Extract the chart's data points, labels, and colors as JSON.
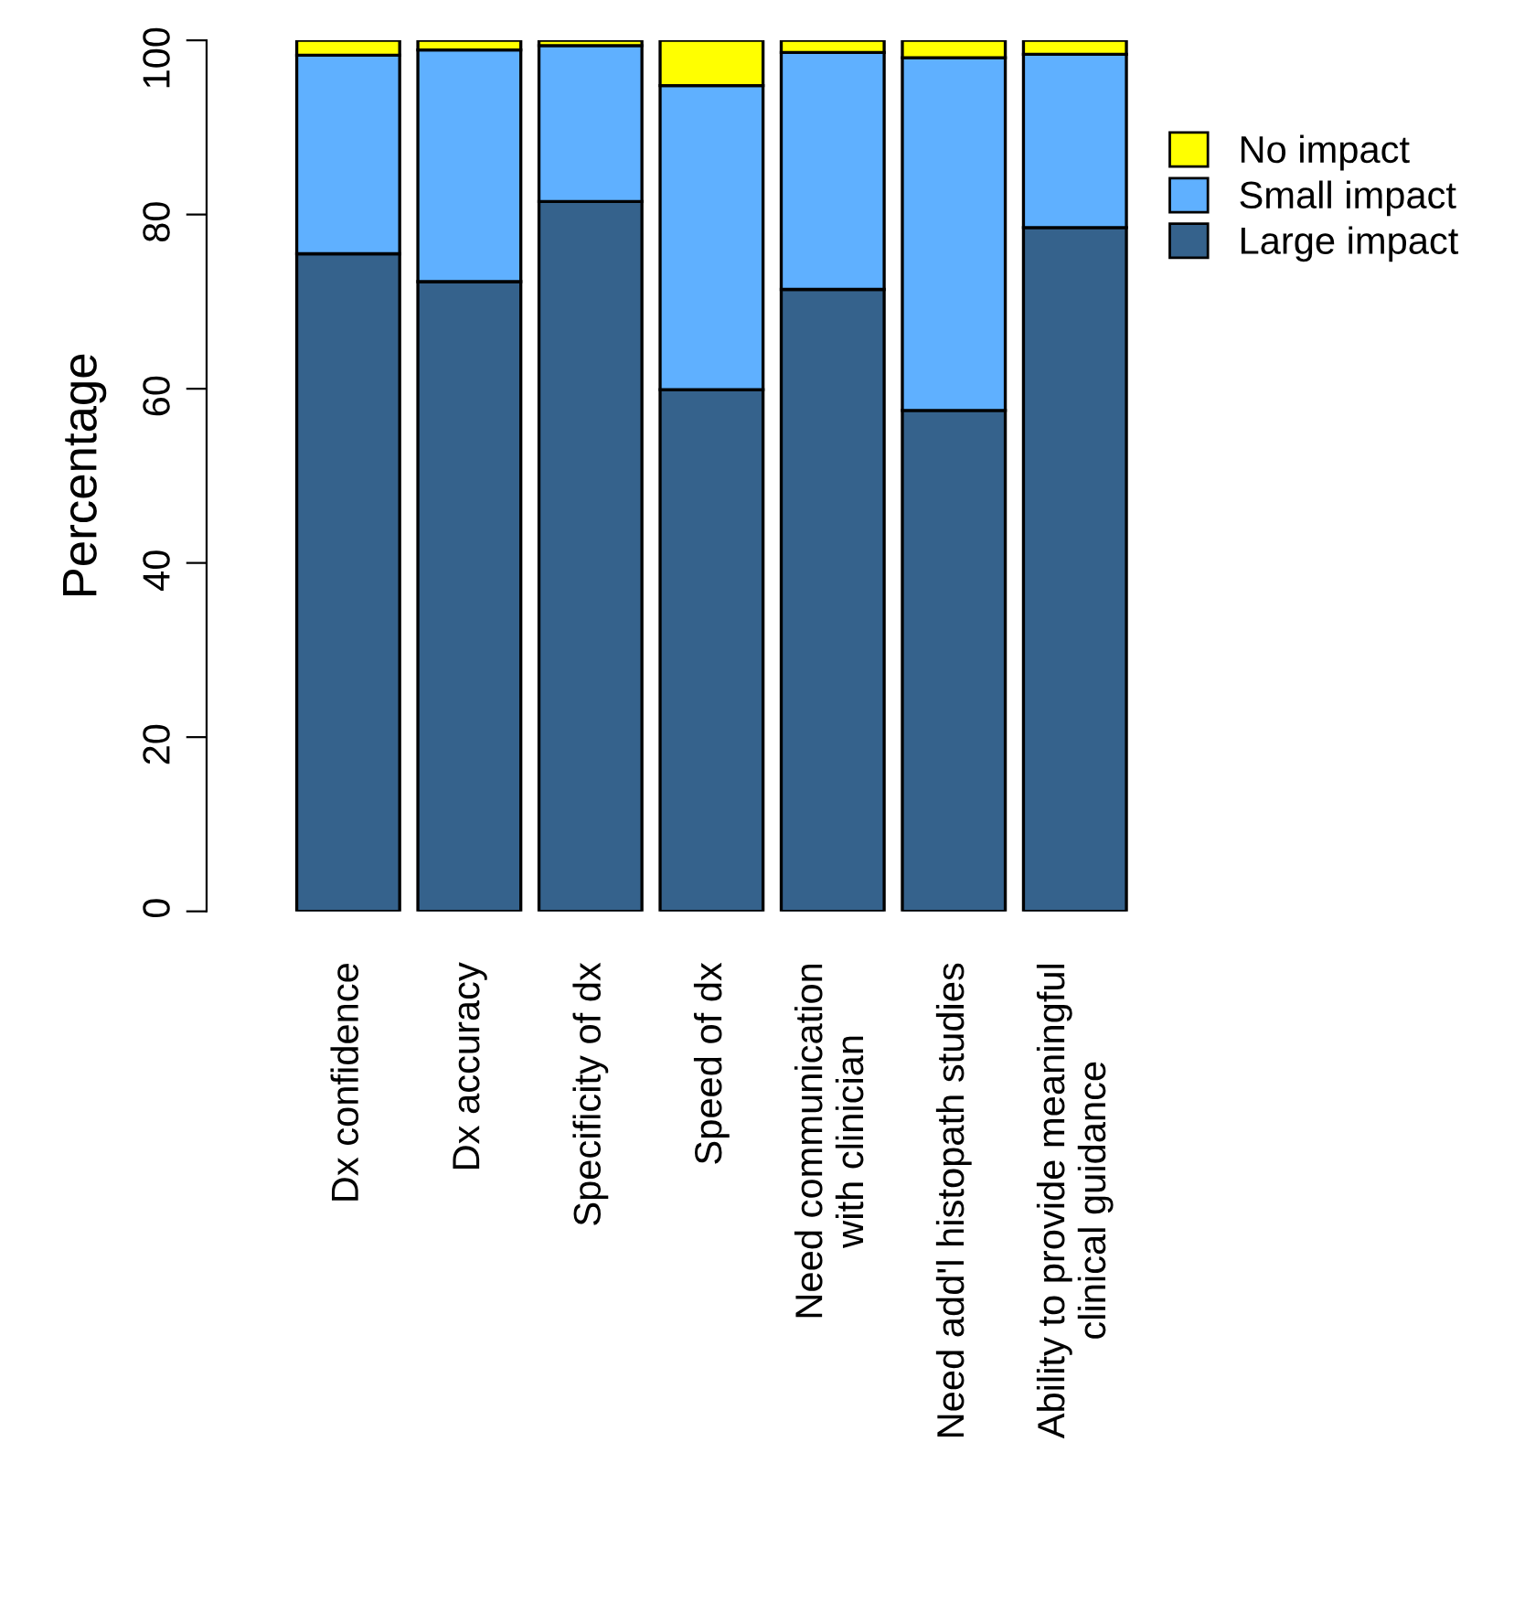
{
  "chart_data": {
    "type": "bar",
    "stacked": true,
    "ylabel": "Percentage",
    "categories": [
      "Dx confidence",
      "Dx accuracy",
      "Specificity of dx",
      "Speed of dx",
      "Need communication\nwith clinician",
      "Need add'l histopath studies",
      "Ability to provide meaningful\nclinical guidance"
    ],
    "series": [
      {
        "name": "Large impact",
        "color": "#35628c",
        "values": [
          75.5,
          72.3,
          81.5,
          59.9,
          71.4,
          57.5,
          78.5
        ]
      },
      {
        "name": "Small impact",
        "color": "#5fb0ff",
        "values": [
          22.8,
          26.6,
          17.9,
          34.9,
          27.2,
          40.5,
          19.9
        ]
      },
      {
        "name": "No impact",
        "color": "#ffff00",
        "values": [
          1.7,
          1.1,
          0.6,
          5.2,
          1.4,
          2.0,
          1.6
        ]
      }
    ],
    "ylim": [
      0,
      100
    ],
    "yticks": [
      0,
      20,
      40,
      60,
      80,
      100
    ],
    "grid": false,
    "legend": "right"
  }
}
